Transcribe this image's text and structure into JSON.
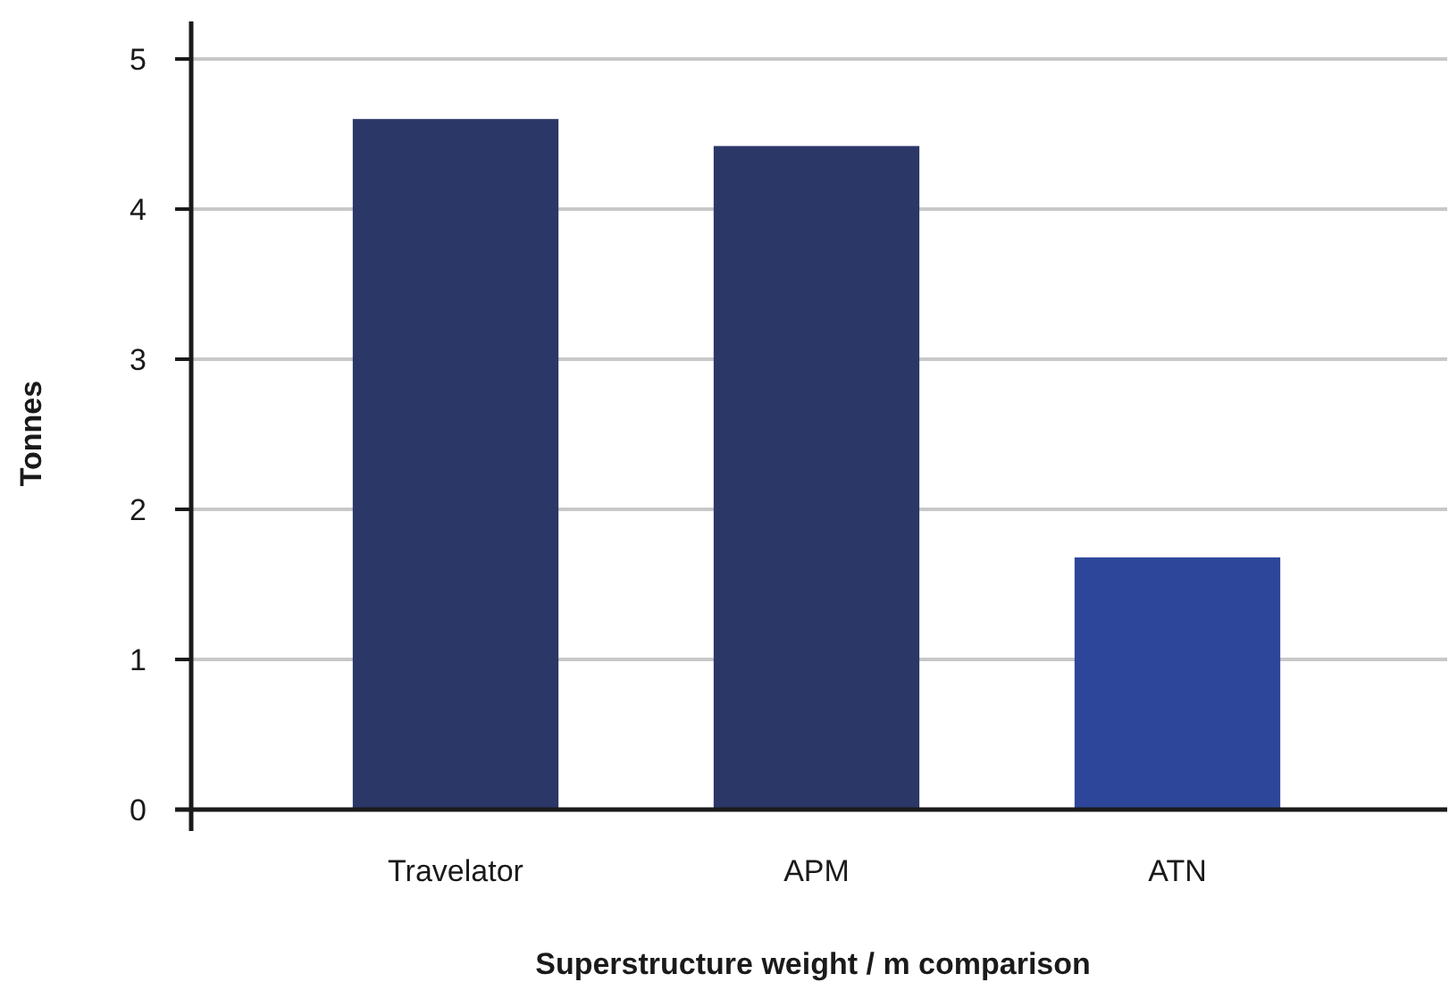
{
  "chart_data": {
    "type": "bar",
    "xlabel": "Superstructure weight / m comparison",
    "ylabel": "Tonnes",
    "categories": [
      "Travelator",
      "APM",
      "ATN"
    ],
    "values": [
      4.6,
      4.42,
      1.68
    ],
    "colors": [
      "#2b3767",
      "#2b3767",
      "#2d4699"
    ],
    "ylim": [
      0,
      5.25
    ],
    "yticks": [
      0,
      1,
      2,
      3,
      4,
      5
    ],
    "grid": "y"
  }
}
